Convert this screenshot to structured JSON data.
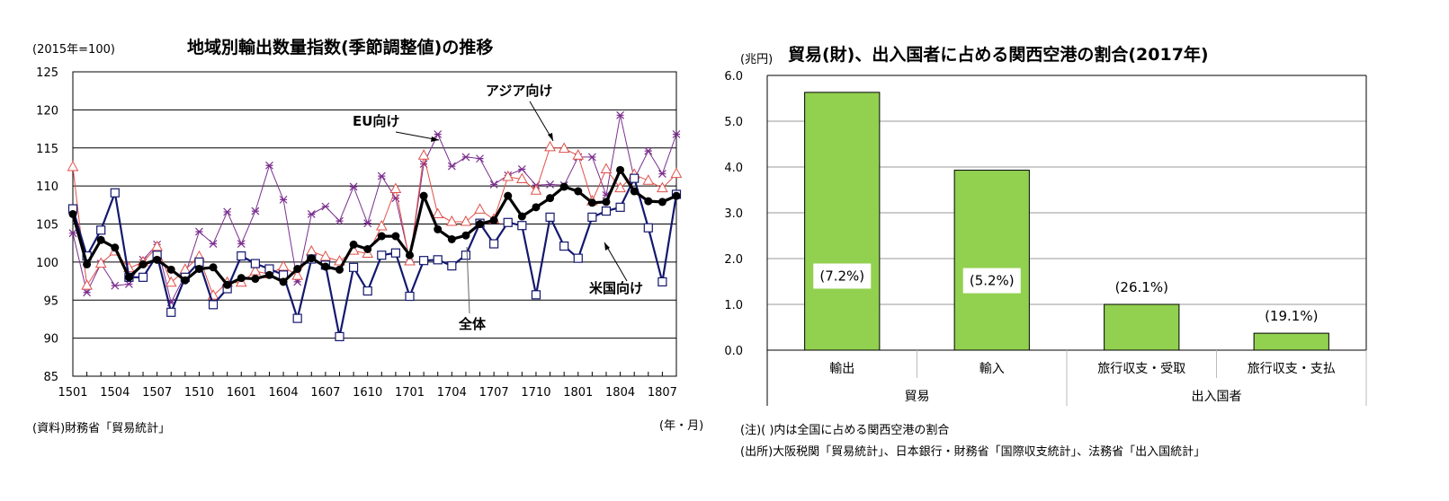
{
  "chart_data": [
    {
      "type": "line",
      "title": "地域別輸出数量指数(季節調整値)の推移",
      "unit_label": "(2015年=100)",
      "xlabel": "(年・月)",
      "ylabel": "",
      "source": "(資料)財務省「貿易統計」",
      "ylim": [
        85,
        125
      ],
      "yticks": [
        "125",
        "120",
        "115",
        "110",
        "105",
        "100",
        "95",
        "90",
        "85"
      ],
      "ytick_values": [
        125,
        120,
        115,
        110,
        105,
        100,
        95,
        90,
        85
      ],
      "grid": true,
      "x": [
        "1501",
        "1502",
        "1503",
        "1504",
        "1505",
        "1506",
        "1507",
        "1508",
        "1509",
        "1510",
        "1511",
        "1512",
        "1601",
        "1602",
        "1603",
        "1604",
        "1605",
        "1606",
        "1607",
        "1608",
        "1609",
        "1610",
        "1611",
        "1612",
        "1701",
        "1702",
        "1703",
        "1704",
        "1705",
        "1706",
        "1707",
        "1708",
        "1709",
        "1710",
        "1711",
        "1712",
        "1801",
        "1802",
        "1803",
        "1804",
        "1805",
        "1806",
        "1807",
        "1808"
      ],
      "xtick_labels": [
        "1501",
        "1504",
        "1507",
        "1510",
        "1601",
        "1604",
        "1607",
        "1610",
        "1701",
        "1704",
        "1707",
        "1710",
        "1801",
        "1804",
        "1807"
      ],
      "series": [
        {
          "name": "EU向け",
          "color": "#7b2f8f",
          "marker": "x",
          "values": [
            103.8,
            96.0,
            99.8,
            96.9,
            97.1,
            100.3,
            102.3,
            94.7,
            98.3,
            104.0,
            102.4,
            106.6,
            102.4,
            106.7,
            112.7,
            108.2,
            97.4,
            106.3,
            107.3,
            105.4,
            109.9,
            105.1,
            111.3,
            108.4,
            100.3,
            112.9,
            116.8,
            112.6,
            113.8,
            113.6,
            110.2,
            111.4,
            112.2,
            110.1,
            110.2,
            110.1,
            113.8,
            113.8,
            108.8,
            119.3,
            110.9,
            114.6,
            111.6,
            116.8
          ]
        },
        {
          "name": "アジア向け",
          "color": "#e0504a",
          "marker": "triangle",
          "values": [
            112.5,
            96.9,
            99.8,
            101.4,
            99.2,
            100.0,
            102.0,
            97.3,
            99.0,
            100.7,
            95.6,
            97.3,
            97.3,
            98.8,
            98.4,
            99.4,
            98.2,
            101.4,
            100.7,
            100.1,
            101.5,
            101.1,
            104.7,
            109.6,
            100.1,
            114.0,
            106.3,
            105.3,
            105.3,
            106.9,
            105.6,
            111.2,
            110.9,
            109.4,
            115.1,
            114.9,
            114.0,
            108.0,
            112.2,
            109.7,
            111.5,
            110.7,
            109.7,
            111.6
          ]
        },
        {
          "name": "米国向け",
          "color": "#14186e",
          "marker": "square",
          "values": [
            107.0,
            100.8,
            104.2,
            109.1,
            98.0,
            98.0,
            100.9,
            93.4,
            98.0,
            100.0,
            94.4,
            96.5,
            100.8,
            99.8,
            99.1,
            98.3,
            92.6,
            100.4,
            99.6,
            90.2,
            99.3,
            96.2,
            100.9,
            101.2,
            95.5,
            100.2,
            100.3,
            99.5,
            100.9,
            105.1,
            102.4,
            105.2,
            104.8,
            95.7,
            105.9,
            102.1,
            100.5,
            105.9,
            106.7,
            107.2,
            111.0,
            104.5,
            97.4,
            108.9
          ]
        },
        {
          "name": "全体",
          "color": "#000000",
          "marker": "circle",
          "values": [
            106.3,
            99.7,
            102.9,
            101.9,
            98.0,
            99.7,
            100.3,
            99.0,
            97.6,
            99.1,
            99.3,
            97.0,
            97.9,
            97.8,
            98.3,
            97.4,
            99.1,
            100.5,
            99.4,
            99.0,
            102.3,
            101.7,
            103.4,
            103.4,
            100.9,
            108.7,
            104.3,
            103.0,
            103.5,
            105.0,
            105.5,
            108.7,
            106.0,
            107.2,
            108.4,
            109.9,
            109.3,
            107.8,
            107.9,
            112.1,
            109.3,
            108.0,
            107.9,
            108.7
          ]
        }
      ],
      "annotations": [
        {
          "text": "アジア向け",
          "series": "アジア向け"
        },
        {
          "text": "EU向け",
          "series": "EU向け"
        },
        {
          "text": "米国向け",
          "series": "米国向け"
        },
        {
          "text": "全体",
          "series": "全体"
        }
      ]
    },
    {
      "type": "bar",
      "title": "貿易(財)、出入国者に占める関西空港の割合(2017年)",
      "unit_label": "(兆円)",
      "ylim": [
        0,
        6
      ],
      "yticks": [
        "6.0",
        "5.0",
        "4.0",
        "3.0",
        "2.0",
        "1.0",
        "0.0"
      ],
      "ytick_values": [
        6,
        5,
        4,
        3,
        2,
        1,
        0
      ],
      "grid": true,
      "categories": [
        "輸出",
        "輸入",
        "旅行収支・受取",
        "旅行収支・支払"
      ],
      "groups": [
        {
          "label": "貿易",
          "span": 2
        },
        {
          "label": "出入国者",
          "span": 2
        }
      ],
      "values": [
        5.63,
        3.93,
        1.0,
        0.37
      ],
      "data_labels": [
        "(7.2%)",
        "(5.2%)",
        "(26.1%)",
        "(19.1%)"
      ],
      "bar_color": "#92d050",
      "notes": [
        "(注)(  )内は全国に占める関西空港の割合",
        "(出所)大阪税関「貿易統計」、日本銀行・財務省「国際収支統計」、法務省「出入国統計」"
      ]
    }
  ]
}
